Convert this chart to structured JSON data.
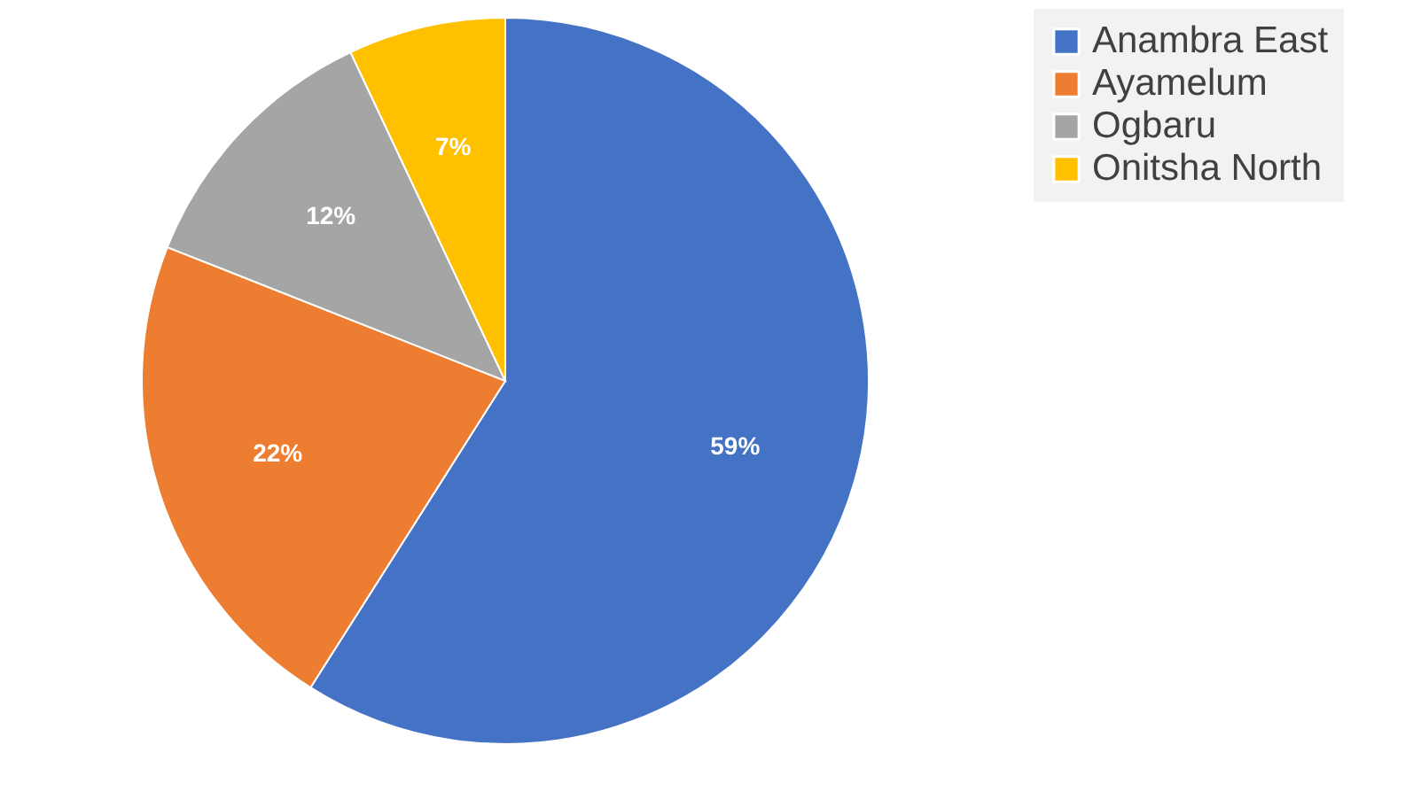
{
  "chart_data": {
    "type": "pie",
    "categories": [
      "Anambra East",
      "Ayamelum",
      "Ogbaru",
      "Onitsha North"
    ],
    "values": [
      59,
      22,
      12,
      7
    ],
    "colors": [
      "#4472c4",
      "#ed7d31",
      "#a5a5a5",
      "#ffc000"
    ],
    "value_labels": [
      "59%",
      "22%",
      "12%",
      "7%"
    ],
    "legend": "right"
  }
}
